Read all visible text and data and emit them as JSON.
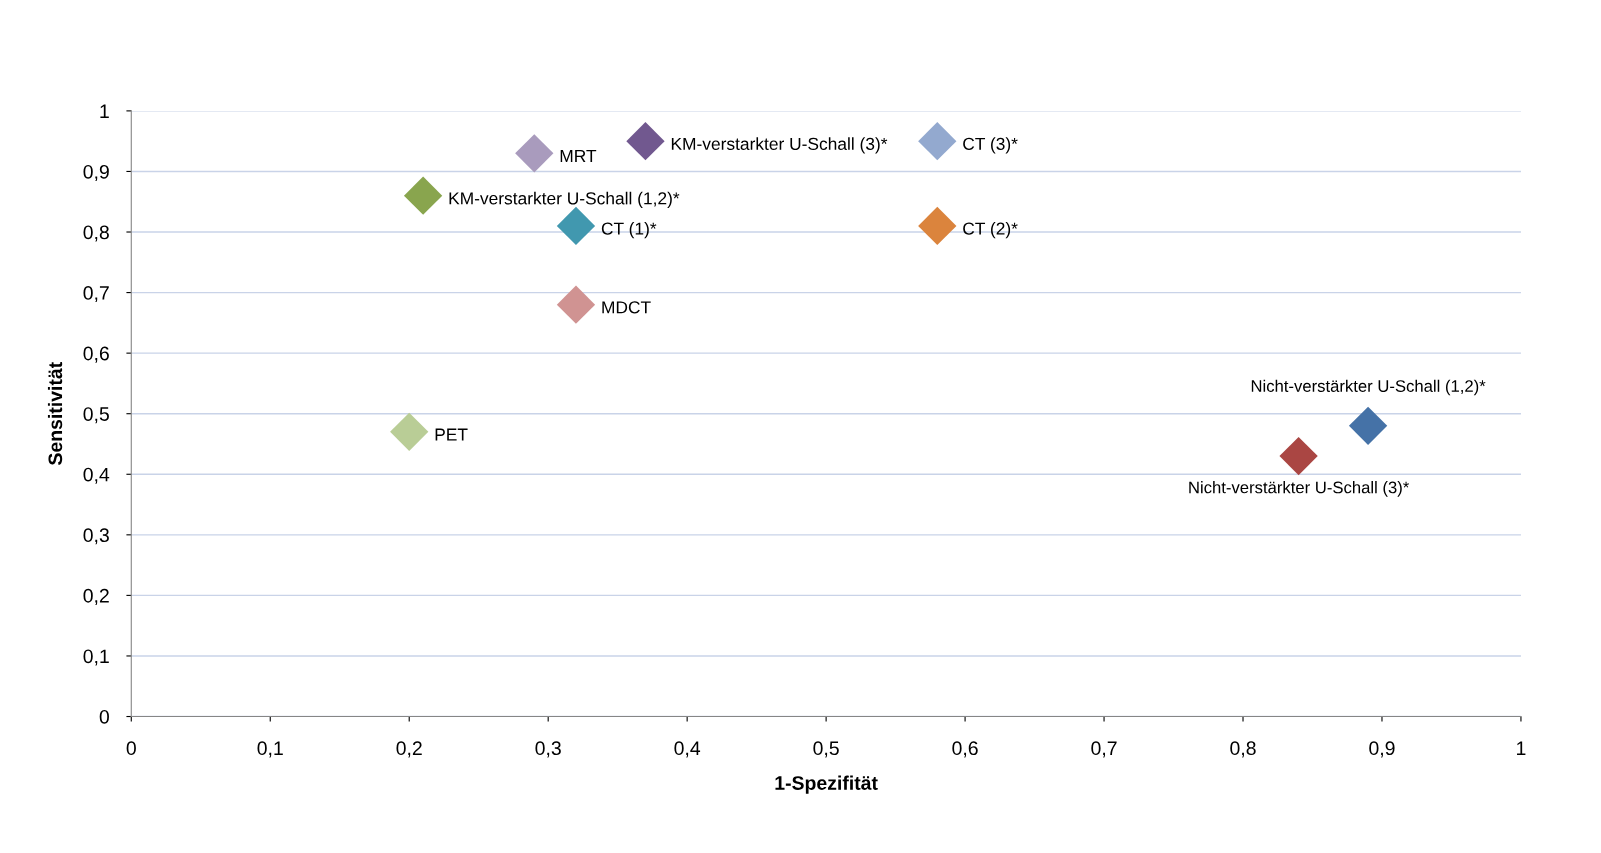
{
  "chart_data": {
    "type": "scatter",
    "xlabel": "1-Spezifität",
    "ylabel": "Sensitivität",
    "xlim": [
      0,
      1
    ],
    "ylim": [
      0,
      1
    ],
    "xticks": [
      {
        "value": 0,
        "label": "0"
      },
      {
        "value": 0.1,
        "label": "0,1"
      },
      {
        "value": 0.2,
        "label": "0,2"
      },
      {
        "value": 0.3,
        "label": "0,3"
      },
      {
        "value": 0.4,
        "label": "0,4"
      },
      {
        "value": 0.5,
        "label": "0,5"
      },
      {
        "value": 0.6,
        "label": "0,6"
      },
      {
        "value": 0.7,
        "label": "0,7"
      },
      {
        "value": 0.8,
        "label": "0,8"
      },
      {
        "value": 0.9,
        "label": "0,9"
      },
      {
        "value": 1,
        "label": "1"
      }
    ],
    "yticks": [
      {
        "value": 0,
        "label": "0"
      },
      {
        "value": 0.1,
        "label": "0,1"
      },
      {
        "value": 0.2,
        "label": "0,2"
      },
      {
        "value": 0.3,
        "label": "0,3"
      },
      {
        "value": 0.4,
        "label": "0,4"
      },
      {
        "value": 0.5,
        "label": "0,5"
      },
      {
        "value": 0.6,
        "label": "0,6"
      },
      {
        "value": 0.7,
        "label": "0,7"
      },
      {
        "value": 0.8,
        "label": "0,8"
      },
      {
        "value": 0.9,
        "label": "0,9"
      },
      {
        "value": 1,
        "label": "1"
      }
    ],
    "grid": "y",
    "legend": false,
    "marker": "diamond",
    "series": [
      {
        "name": "Nicht-verstärkter U-Schall (1,2)*",
        "color": "#4572a7",
        "x": [
          0.89
        ],
        "values": [
          0.48
        ]
      },
      {
        "name": "Nicht-verstärkter U-Schall (3)*",
        "color": "#aa4643",
        "x": [
          0.84
        ],
        "values": [
          0.43
        ]
      },
      {
        "name": "KM-verstarkter U-Schall (1,2)*",
        "color": "#89a54e",
        "x": [
          0.21
        ],
        "values": [
          0.86
        ]
      },
      {
        "name": "KM-verstarkter U-Schall (3)*",
        "color": "#71588f",
        "x": [
          0.37
        ],
        "values": [
          0.95
        ]
      },
      {
        "name": "CT (1)*",
        "color": "#4198af",
        "x": [
          0.32
        ],
        "values": [
          0.81
        ]
      },
      {
        "name": "CT (2)*",
        "color": "#db843d",
        "x": [
          0.58
        ],
        "values": [
          0.81
        ]
      },
      {
        "name": "CT (3)*",
        "color": "#93a9cf",
        "x": [
          0.58
        ],
        "values": [
          0.95
        ]
      },
      {
        "name": "MRT",
        "color": "#a99bbd",
        "x": [
          0.29
        ],
        "values": [
          0.93
        ]
      },
      {
        "name": "MDCT",
        "color": "#d09392",
        "x": [
          0.32
        ],
        "values": [
          0.68
        ]
      },
      {
        "name": "PET",
        "color": "#b9cd96",
        "x": [
          0.2
        ],
        "values": [
          0.47
        ]
      }
    ]
  }
}
